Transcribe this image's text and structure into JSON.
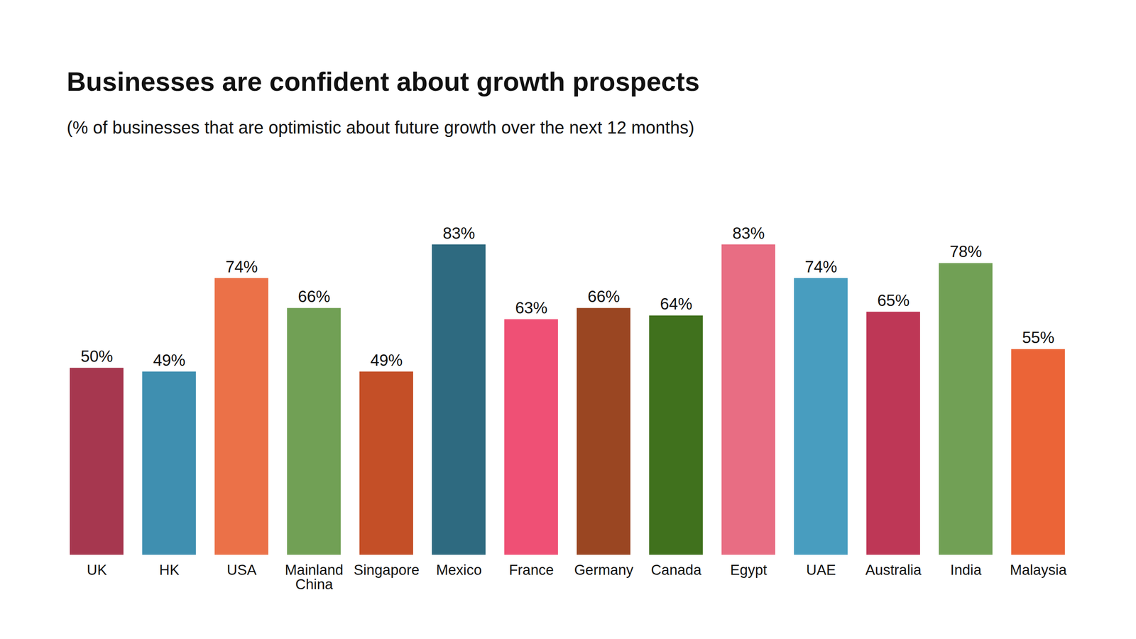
{
  "chart_data": {
    "type": "bar",
    "title": "Businesses are confident about growth prospects",
    "subtitle": "(% of businesses that are optimistic about future growth over the next 12 months)",
    "categories": [
      "UK",
      "HK",
      "USA",
      "Mainland China",
      "Singapore",
      "Mexico",
      "France",
      "Germany",
      "Canada",
      "Egypt",
      "UAE",
      "Australia",
      "India",
      "Malaysia"
    ],
    "values": [
      50,
      49,
      74,
      66,
      49,
      83,
      63,
      66,
      64,
      83,
      74,
      65,
      78,
      55
    ],
    "value_labels": [
      "50%",
      "49%",
      "74%",
      "66%",
      "49%",
      "83%",
      "63%",
      "66%",
      "64%",
      "83%",
      "74%",
      "65%",
      "78%",
      "55%"
    ],
    "colors": [
      "#a6374f",
      "#3f8fb0",
      "#eb7148",
      "#71a055",
      "#c44f27",
      "#2e6a80",
      "#ef5075",
      "#9a4622",
      "#40711d",
      "#e86d83",
      "#489dbf",
      "#be3756",
      "#71a055",
      "#eb6437"
    ],
    "ylim": [
      0,
      83
    ],
    "data_labels": true,
    "tick_labels": "x",
    "grid": false
  }
}
